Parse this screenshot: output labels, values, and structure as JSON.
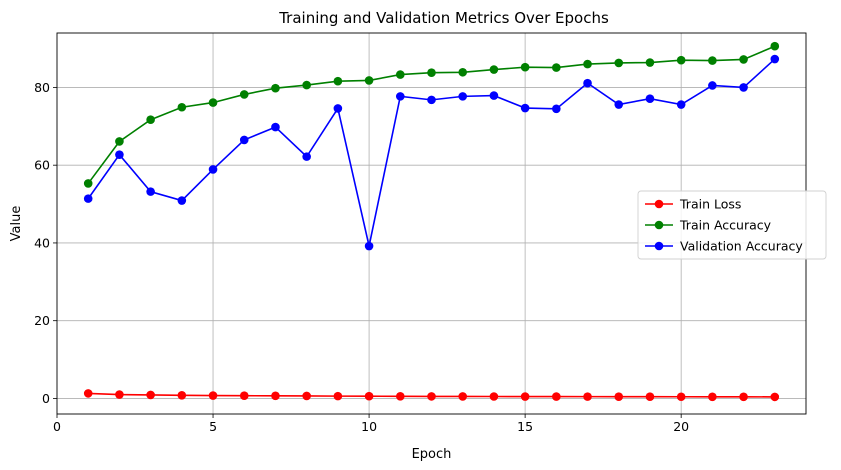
{
  "chart_data": {
    "type": "line",
    "title": "Training and Validation Metrics Over Epochs",
    "xlabel": "Epoch",
    "ylabel": "Value",
    "xlim": [
      0,
      24
    ],
    "ylim": [
      -4,
      94
    ],
    "xticks": [
      0,
      5,
      10,
      15,
      20
    ],
    "yticks": [
      0,
      20,
      40,
      60,
      80
    ],
    "grid": true,
    "legend_position": "center-right",
    "x": [
      1,
      2,
      3,
      4,
      5,
      6,
      7,
      8,
      9,
      10,
      11,
      12,
      13,
      14,
      15,
      16,
      17,
      18,
      19,
      20,
      21,
      22,
      23
    ],
    "series": [
      {
        "name": "Train Loss",
        "color": "#ff0000",
        "marker": "circle",
        "values": [
          1.3,
          1.0,
          0.9,
          0.8,
          0.75,
          0.7,
          0.68,
          0.65,
          0.6,
          0.58,
          0.55,
          0.53,
          0.52,
          0.5,
          0.49,
          0.48,
          0.47,
          0.46,
          0.45,
          0.44,
          0.43,
          0.42,
          0.4
        ]
      },
      {
        "name": "Train Accuracy",
        "color": "#008000",
        "marker": "circle",
        "values": [
          55.3,
          66.1,
          71.7,
          74.9,
          76.1,
          78.2,
          79.8,
          80.6,
          81.6,
          81.8,
          83.3,
          83.8,
          83.9,
          84.6,
          85.2,
          85.1,
          86.0,
          86.3,
          86.4,
          87.0,
          86.9,
          87.2,
          90.6
        ]
      },
      {
        "name": "Validation Accuracy",
        "color": "#0000ff",
        "marker": "circle",
        "values": [
          51.4,
          62.7,
          53.2,
          50.9,
          58.9,
          66.5,
          69.8,
          62.2,
          74.6,
          39.2,
          77.7,
          76.8,
          77.7,
          77.9,
          74.7,
          74.5,
          81.1,
          75.6,
          77.1,
          75.6,
          80.5,
          80.0,
          87.3
        ]
      }
    ]
  }
}
